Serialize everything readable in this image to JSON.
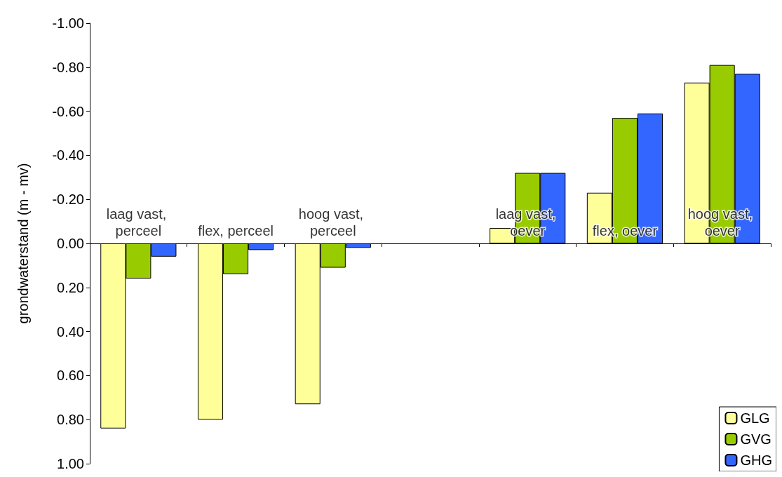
{
  "chart_data": {
    "type": "bar",
    "ylabel": "grondwaterstand (m - mv)",
    "categories": [
      "laag vast, perceel",
      "flex, perceel",
      "hoog vast, perceel",
      null,
      "laag vast, oever",
      "flex, oever",
      "hoog vast, oever"
    ],
    "series": [
      {
        "name": "GLG",
        "color": "#ffff99",
        "values": [
          0.84,
          0.8,
          0.73,
          null,
          -0.07,
          -0.23,
          -0.73
        ]
      },
      {
        "name": "GVG",
        "color": "#99cc00",
        "values": [
          0.16,
          0.14,
          0.11,
          null,
          -0.32,
          -0.57,
          -0.81
        ]
      },
      {
        "name": "GHG",
        "color": "#3366ff",
        "values": [
          0.06,
          0.03,
          0.02,
          null,
          -0.32,
          -0.59,
          -0.77
        ]
      }
    ],
    "ylim": [
      1,
      -1
    ],
    "yticks": [
      {
        "value": -1,
        "label": "-1.00"
      },
      {
        "value": -0.8,
        "label": "-0.80"
      },
      {
        "value": -0.6,
        "label": "-0.60"
      },
      {
        "value": -0.4,
        "label": "-0.40"
      },
      {
        "value": -0.2,
        "label": "-0.20"
      },
      {
        "value": 0,
        "label": "0.00"
      },
      {
        "value": 0.2,
        "label": "0.20"
      },
      {
        "value": 0.4,
        "label": "0.40"
      },
      {
        "value": 0.6,
        "label": "0.60"
      },
      {
        "value": 0.8,
        "label": "0.80"
      },
      {
        "value": 1,
        "label": "1.00"
      }
    ],
    "grid": false,
    "legend": "bottom right"
  }
}
